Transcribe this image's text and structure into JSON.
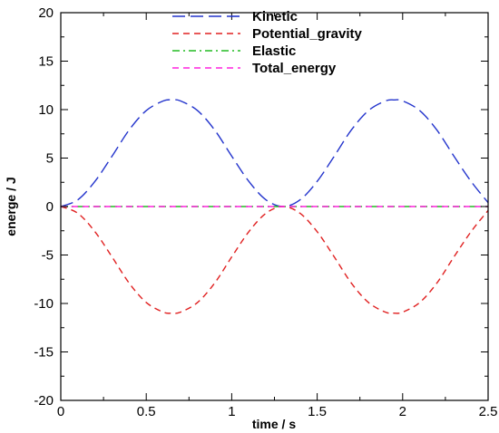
{
  "chart_data": {
    "type": "line",
    "xlabel": "time / s",
    "ylabel": "energe / J",
    "xlim": [
      0,
      2.5
    ],
    "ylim": [
      -20,
      20
    ],
    "xticks": [
      "0",
      "0.5",
      "1",
      "1.5",
      "2",
      "2.5"
    ],
    "yticks": [
      "-20",
      "-15",
      "-10",
      "-5",
      "0",
      "5",
      "10",
      "15",
      "20"
    ],
    "grid": false,
    "legend_position": "top-center",
    "series": [
      {
        "name": "Kinetic",
        "color": "#2233cc",
        "dash": "long-dash",
        "x": [
          0,
          0.1,
          0.2,
          0.3,
          0.4,
          0.5,
          0.6,
          0.65,
          0.7,
          0.8,
          0.9,
          1.0,
          1.1,
          1.2,
          1.3,
          1.4,
          1.5,
          1.6,
          1.7,
          1.8,
          1.9,
          1.95,
          2.0,
          2.1,
          2.2,
          2.3,
          2.4,
          2.5
        ],
        "y": [
          0,
          0.7,
          2.6,
          5.2,
          7.9,
          9.9,
          10.9,
          11.0,
          10.9,
          9.9,
          7.9,
          5.2,
          2.6,
          0.7,
          0,
          0.7,
          2.6,
          5.2,
          7.9,
          9.9,
          10.9,
          11.0,
          10.9,
          9.9,
          7.9,
          5.2,
          2.6,
          0.4
        ]
      },
      {
        "name": "Potential_gravity",
        "color": "#e02020",
        "dash": "dash",
        "x": [
          0,
          0.1,
          0.2,
          0.3,
          0.4,
          0.5,
          0.6,
          0.65,
          0.7,
          0.8,
          0.9,
          1.0,
          1.1,
          1.2,
          1.3,
          1.4,
          1.5,
          1.6,
          1.7,
          1.8,
          1.9,
          1.95,
          2.0,
          2.1,
          2.2,
          2.3,
          2.4,
          2.5
        ],
        "y": [
          0,
          -0.7,
          -2.6,
          -5.2,
          -7.9,
          -9.9,
          -10.9,
          -11.0,
          -10.9,
          -9.9,
          -7.9,
          -5.2,
          -2.6,
          -0.7,
          0,
          -0.7,
          -2.6,
          -5.2,
          -7.9,
          -9.9,
          -10.9,
          -11.0,
          -10.9,
          -9.9,
          -7.9,
          -5.2,
          -2.6,
          -0.4
        ]
      },
      {
        "name": "Elastic",
        "color": "#22bb22",
        "dash": "dash-dot",
        "x": [
          0,
          2.5
        ],
        "y": [
          0,
          0
        ]
      },
      {
        "name": "Total_energy",
        "color": "#ff22dd",
        "dash": "dash",
        "x": [
          0,
          2.5
        ],
        "y": [
          0,
          0
        ]
      }
    ]
  }
}
